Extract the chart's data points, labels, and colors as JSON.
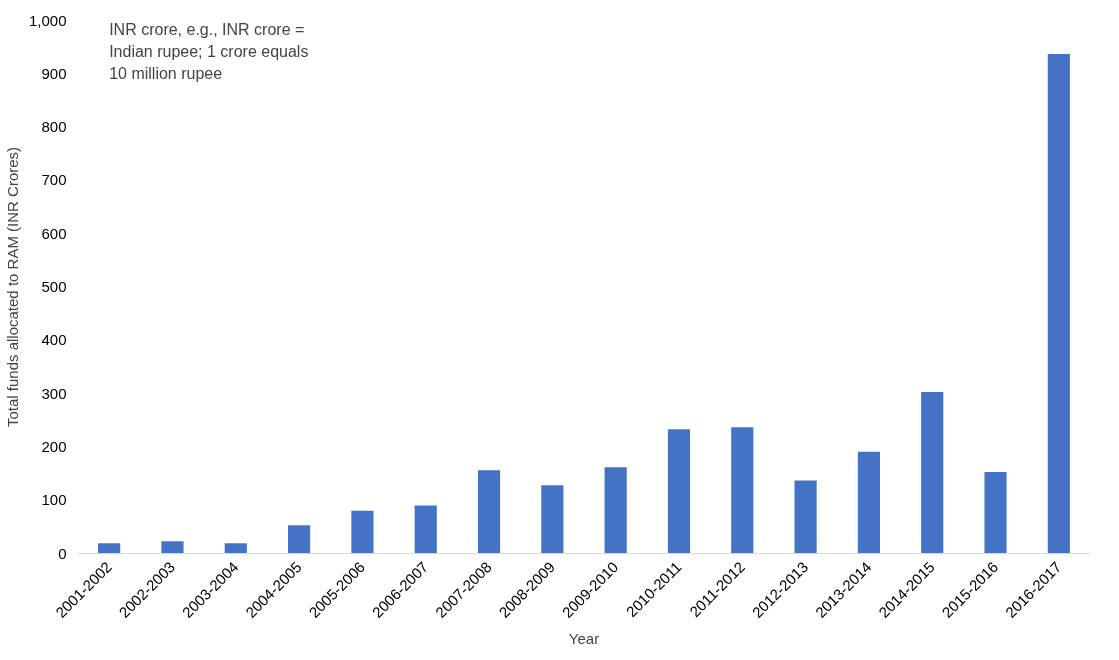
{
  "chart_data": {
    "type": "bar",
    "xlabel": "Year",
    "ylabel": "Total funds allocated to RAM (INR Crores)",
    "annotations": [
      "INR crore, e.g., INR crore = Indian rupee; 1 crore equals 10 million rupee"
    ],
    "categories": [
      "2001-2002",
      "2002-2003",
      "2003-2004",
      "2004-2005",
      "2005-2006",
      "2006-2007",
      "2007-2008",
      "2008-2009",
      "2009-2010",
      "2010-2011",
      "2011-2012",
      "2012-2013",
      "2013-2014",
      "2014-2015",
      "2015-2016",
      "2016-2017"
    ],
    "values": [
      19,
      23,
      19,
      53,
      80,
      90,
      156,
      128,
      162,
      233,
      237,
      137,
      191,
      303,
      153,
      937
    ],
    "color": "#4472c4",
    "ylim": [
      0,
      1000
    ],
    "yticks": [
      0,
      100,
      200,
      300,
      400,
      500,
      600,
      700,
      800,
      900,
      {
        "value": 1000,
        "label": "1,000"
      }
    ],
    "grid": false
  }
}
